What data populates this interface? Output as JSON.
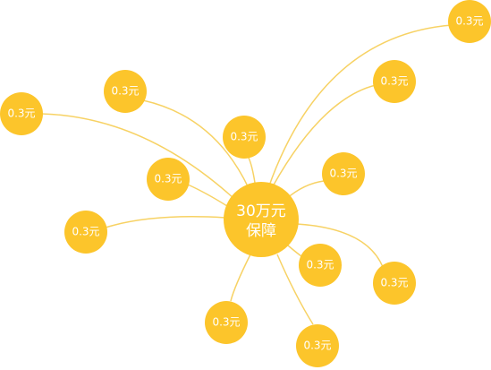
{
  "center": {
    "lines": [
      "30万元",
      "保障"
    ]
  },
  "nodes": [
    {
      "label": "0.3元"
    },
    {
      "label": "0.3元"
    },
    {
      "label": "0.3元"
    },
    {
      "label": "0.3元"
    },
    {
      "label": "0.3元"
    },
    {
      "label": "0.3元"
    },
    {
      "label": "0.3元"
    },
    {
      "label": "0.3元"
    },
    {
      "label": "0.3元"
    },
    {
      "label": "0.3元"
    },
    {
      "label": "0.3元"
    },
    {
      "label": "0.3元"
    }
  ]
}
